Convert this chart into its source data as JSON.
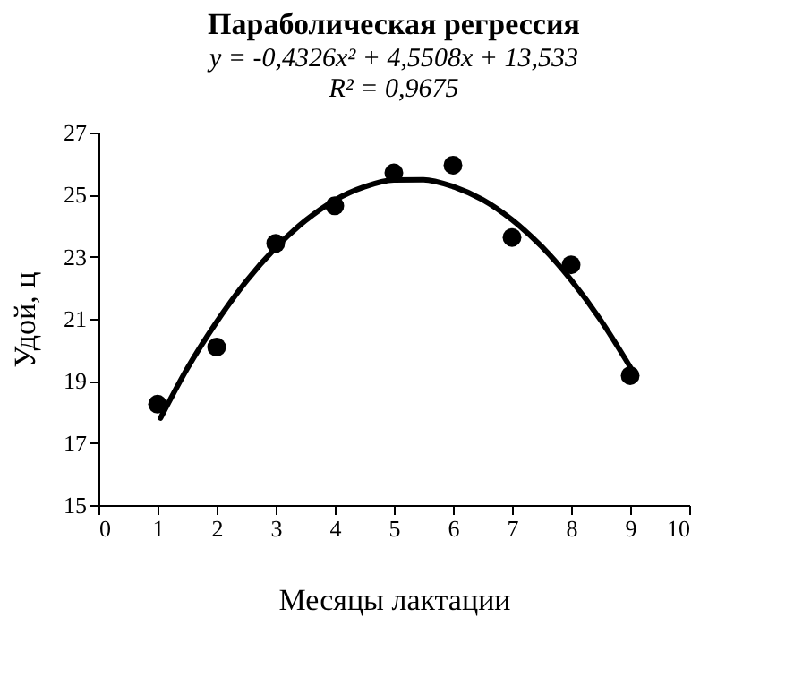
{
  "chart_data": {
    "type": "scatter",
    "title": "Параболическая регрессия",
    "subtitle": "y = -0,4326x² + 4,5508x + 13,533\nR² = 0,9675",
    "xlabel": "Месяцы лактации",
    "ylabel": "Удой, ц",
    "x": [
      1,
      2,
      3,
      4,
      5,
      6,
      7,
      8,
      9
    ],
    "series": [
      {
        "color": "#000000",
        "marker": "circle",
        "values": [
          18.25,
          20.09,
          23.43,
          24.64,
          25.7,
          25.95,
          23.62,
          22.74,
          19.17
        ]
      },
      {
        "type": "line",
        "color": "#000000",
        "marker": "none",
        "line_style": "solid",
        "x": [
          1.05,
          1.5,
          2,
          2.5,
          3,
          3.5,
          4,
          4.5,
          5,
          5.5,
          6,
          6.5,
          7,
          7.5,
          8,
          8.5,
          9
        ],
        "values": [
          17.8,
          19.39,
          20.9,
          22.21,
          23.29,
          24.16,
          24.82,
          25.25,
          25.47,
          25.48,
          25.26,
          24.84,
          24.19,
          23.33,
          22.25,
          20.96,
          19.45
        ]
      }
    ],
    "xlim": [
      0,
      10
    ],
    "xticks": [
      0,
      1,
      2,
      3,
      4,
      5,
      6,
      7,
      8,
      9,
      10
    ],
    "ylim": [
      15,
      27
    ],
    "yticks": [
      15,
      17,
      19,
      21,
      23,
      25,
      27
    ],
    "grid": false
  }
}
